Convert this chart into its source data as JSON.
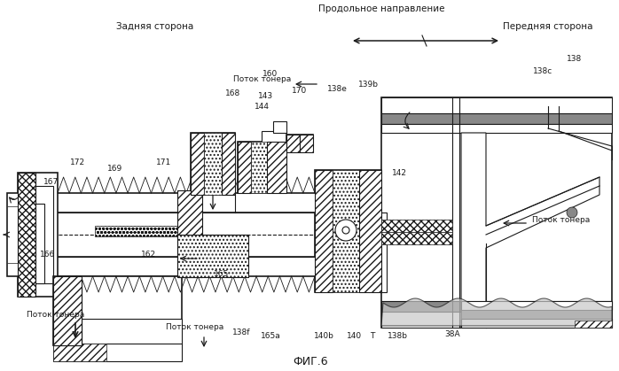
{
  "bg": "#ffffff",
  "black": "#1a1a1a",
  "gray": "#c8c8c8",
  "fig_title": "ФИГ.6",
  "lbl_long": "Продольное направление",
  "lbl_rear": "Задняя сторона",
  "lbl_front": "Передняя сторона",
  "lbl_toner": "Поток тонера",
  "figsize": [
    6.98,
    4.19
  ],
  "dpi": 100
}
